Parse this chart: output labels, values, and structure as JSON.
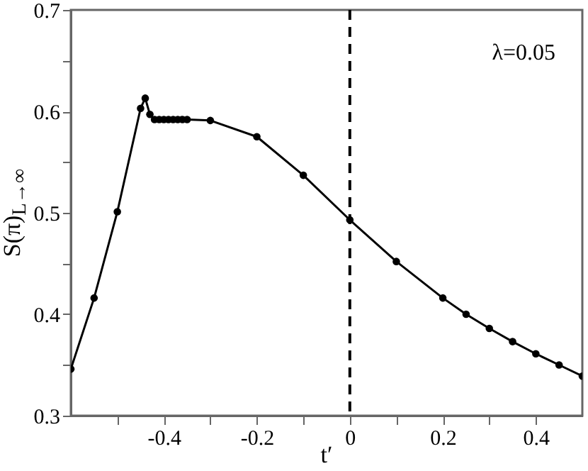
{
  "chart_data": {
    "type": "line",
    "xlabel": "t′",
    "ylabel": "S(π)$_{L→∞}$",
    "annotations": [
      "λ=0.05"
    ],
    "x": [
      -0.6,
      -0.55,
      -0.5,
      -0.45,
      -0.44,
      -0.43,
      -0.42,
      -0.41,
      -0.4,
      -0.39,
      -0.38,
      -0.37,
      -0.36,
      -0.35,
      -0.3,
      -0.2,
      -0.1,
      0,
      0.1,
      0.2,
      0.25,
      0.3,
      0.35,
      0.4,
      0.45,
      0.5
    ],
    "series": [
      {
        "color": "#000000",
        "values": [
          0.346,
          0.416,
          0.501,
          0.603,
          0.613,
          0.597,
          0.592,
          0.592,
          0.592,
          0.592,
          0.592,
          0.592,
          0.592,
          0.592,
          0.591,
          0.575,
          0.537,
          0.493,
          0.452,
          0.416,
          0.4,
          0.386,
          0.373,
          0.361,
          0.35,
          0.339
        ]
      }
    ],
    "xlim": [
      -0.6,
      0.5
    ],
    "xticks": [
      {
        "value": -0.5,
        "label": null
      },
      -0.4,
      {
        "value": -0.3,
        "label": null
      },
      -0.2,
      {
        "value": -0.1,
        "label": null
      },
      0,
      {
        "value": 0.1,
        "label": null
      },
      0.2,
      {
        "value": 0.3,
        "label": null
      },
      0.4
    ],
    "ylim": [
      0.3,
      0.7
    ],
    "yticks": [
      0.3,
      {
        "value": 0.35,
        "label": null
      },
      0.4,
      {
        "value": 0.45,
        "label": null
      },
      0.5,
      {
        "value": 0.55,
        "label": null
      },
      0.6,
      {
        "value": 0.65,
        "label": null
      },
      0.7
    ],
    "ref_lines": [
      {
        "axis": "x",
        "value": 0,
        "line_style": "dashed",
        "color": "#000000"
      }
    ],
    "marker": "circle",
    "line_style": "solid",
    "grid": false
  }
}
